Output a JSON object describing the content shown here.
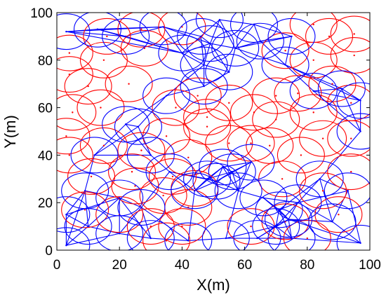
{
  "chart_data": {
    "type": "scatter",
    "title": "",
    "xlabel": "X(m)",
    "ylabel": "Y(m)",
    "xlim": [
      0,
      100
    ],
    "ylim": [
      0,
      100
    ],
    "xticks": [
      "0",
      "20",
      "40",
      "60",
      "80",
      "100"
    ],
    "yticks": [
      "0",
      "20",
      "40",
      "60",
      "80",
      "100"
    ],
    "grid": false,
    "colors": {
      "red": "#ff0000",
      "blue": "#0000ff",
      "axis": "#000000"
    },
    "sensing_radius": 7.5,
    "red_nodes": [
      [
        4,
        83
      ],
      [
        16,
        90
      ],
      [
        27,
        93
      ],
      [
        40,
        94
      ],
      [
        28,
        85
      ],
      [
        15,
        80
      ],
      [
        4,
        74
      ],
      [
        10,
        69
      ],
      [
        23,
        70
      ],
      [
        5,
        58
      ],
      [
        14,
        60
      ],
      [
        3,
        48
      ],
      [
        15,
        44
      ],
      [
        27,
        42
      ],
      [
        35,
        48
      ],
      [
        4,
        40
      ],
      [
        11,
        31
      ],
      [
        24,
        33
      ],
      [
        37,
        31
      ],
      [
        42,
        39
      ],
      [
        34,
        23
      ],
      [
        42,
        18
      ],
      [
        25,
        27
      ],
      [
        9,
        17
      ],
      [
        20,
        15
      ],
      [
        30,
        10
      ],
      [
        40,
        10
      ],
      [
        35,
        4
      ],
      [
        44,
        26
      ],
      [
        45,
        65
      ],
      [
        55,
        62
      ],
      [
        48,
        56
      ],
      [
        38,
        60
      ],
      [
        63,
        58
      ],
      [
        70,
        55
      ],
      [
        77,
        66
      ],
      [
        82,
        58
      ],
      [
        88,
        70
      ],
      [
        94,
        62
      ],
      [
        70,
        65
      ],
      [
        85,
        47
      ],
      [
        94,
        47
      ],
      [
        78,
        40
      ],
      [
        72,
        30
      ],
      [
        85,
        25
      ],
      [
        94,
        33
      ],
      [
        90,
        15
      ],
      [
        80,
        5
      ],
      [
        73,
        12
      ],
      [
        62,
        10
      ],
      [
        68,
        44
      ],
      [
        48,
        52
      ],
      [
        87,
        90
      ],
      [
        95,
        82
      ],
      [
        82,
        80
      ],
      [
        95,
        91
      ],
      [
        73,
        84
      ],
      [
        82,
        95
      ],
      [
        55,
        45
      ],
      [
        62,
        45
      ]
    ],
    "blue_nodes": [
      [
        3,
        92
      ],
      [
        13,
        93
      ],
      [
        22,
        90
      ],
      [
        34,
        94
      ],
      [
        46,
        90
      ],
      [
        52,
        97
      ],
      [
        57,
        85
      ],
      [
        65,
        88
      ],
      [
        75,
        90
      ],
      [
        49,
        87
      ],
      [
        40,
        83
      ],
      [
        55,
        75
      ],
      [
        47,
        78
      ],
      [
        26,
        52
      ],
      [
        22,
        53
      ],
      [
        30,
        40
      ],
      [
        36,
        33
      ],
      [
        44,
        25
      ],
      [
        51,
        29
      ],
      [
        58,
        25
      ],
      [
        56,
        33
      ],
      [
        53,
        35
      ],
      [
        48,
        30
      ],
      [
        62,
        37
      ],
      [
        66,
        22
      ],
      [
        71,
        17
      ],
      [
        74,
        13
      ],
      [
        70,
        10
      ],
      [
        77,
        20
      ],
      [
        75,
        5
      ],
      [
        64,
        5
      ],
      [
        54,
        5
      ],
      [
        42,
        4
      ],
      [
        30,
        5
      ],
      [
        20,
        7
      ],
      [
        10,
        10
      ],
      [
        3,
        2
      ],
      [
        9,
        25
      ],
      [
        20,
        22
      ],
      [
        27,
        18
      ],
      [
        3,
        15
      ],
      [
        97,
        50
      ],
      [
        97,
        3
      ],
      [
        88,
        12
      ],
      [
        93,
        25
      ],
      [
        84,
        30
      ],
      [
        97,
        63
      ],
      [
        91,
        68
      ],
      [
        35,
        65
      ],
      [
        47,
        69
      ],
      [
        63,
        95
      ],
      [
        73,
        78
      ],
      [
        82,
        67
      ],
      [
        12,
        40
      ]
    ]
  }
}
